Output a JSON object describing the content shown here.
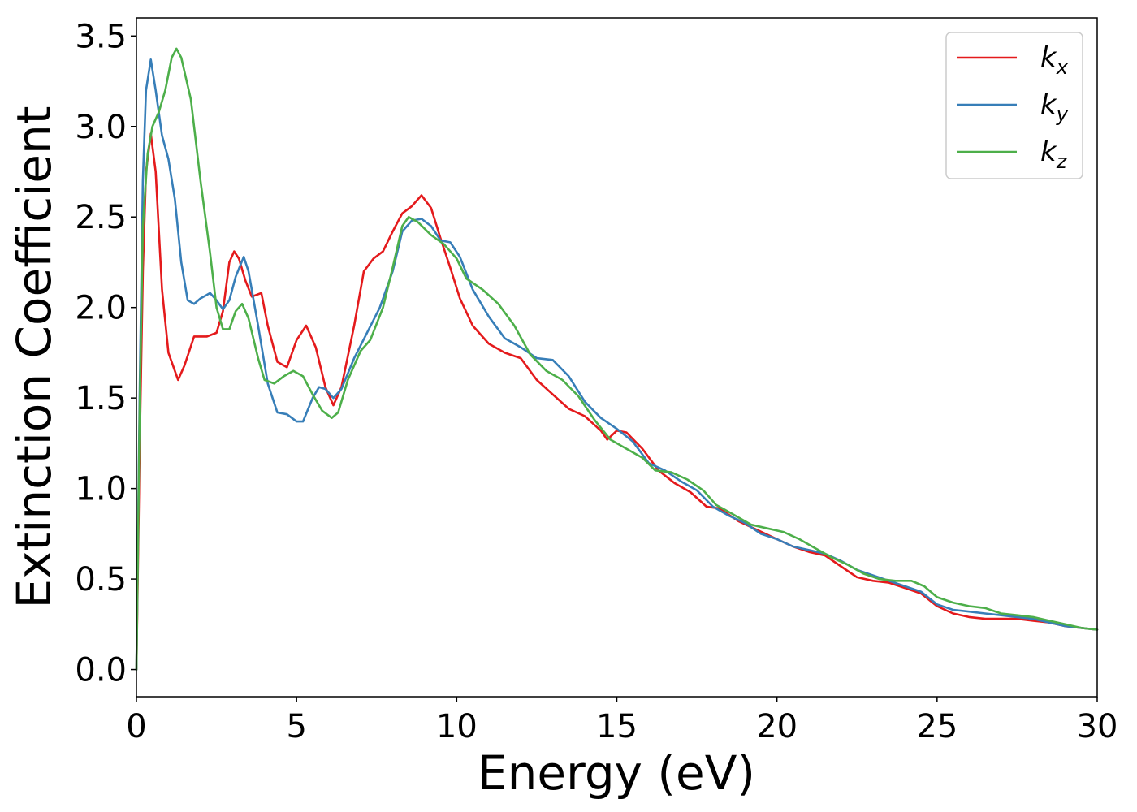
{
  "chart_data": {
    "type": "line",
    "title": "",
    "xlabel": "Energy (eV)",
    "ylabel": "Extinction Coefficient",
    "xlim": [
      0,
      30
    ],
    "ylim": [
      -0.15,
      3.6
    ],
    "xticks": [
      "0",
      "5",
      "10",
      "15",
      "20",
      "25",
      "30"
    ],
    "yticks": [
      "0.0",
      "0.5",
      "1.0",
      "1.5",
      "2.0",
      "2.5",
      "3.0",
      "3.5"
    ],
    "grid": false,
    "legend_position": "top-right",
    "series": [
      {
        "name": "k",
        "subscript": "x",
        "color": "#e41a1c",
        "points": [
          [
            0,
            0.0
          ],
          [
            0.1,
            1.2
          ],
          [
            0.2,
            2.2
          ],
          [
            0.3,
            2.75
          ],
          [
            0.45,
            2.96
          ],
          [
            0.6,
            2.75
          ],
          [
            0.8,
            2.1
          ],
          [
            1.0,
            1.75
          ],
          [
            1.3,
            1.6
          ],
          [
            1.5,
            1.68
          ],
          [
            1.8,
            1.84
          ],
          [
            2.2,
            1.84
          ],
          [
            2.5,
            1.86
          ],
          [
            2.7,
            1.98
          ],
          [
            2.9,
            2.25
          ],
          [
            3.05,
            2.31
          ],
          [
            3.2,
            2.27
          ],
          [
            3.4,
            2.15
          ],
          [
            3.6,
            2.06
          ],
          [
            3.9,
            2.08
          ],
          [
            4.1,
            1.9
          ],
          [
            4.4,
            1.7
          ],
          [
            4.7,
            1.67
          ],
          [
            5.0,
            1.82
          ],
          [
            5.3,
            1.9
          ],
          [
            5.6,
            1.78
          ],
          [
            5.9,
            1.56
          ],
          [
            6.15,
            1.46
          ],
          [
            6.4,
            1.56
          ],
          [
            6.8,
            1.9
          ],
          [
            7.1,
            2.2
          ],
          [
            7.4,
            2.27
          ],
          [
            7.7,
            2.31
          ],
          [
            8.0,
            2.42
          ],
          [
            8.3,
            2.52
          ],
          [
            8.6,
            2.56
          ],
          [
            8.9,
            2.62
          ],
          [
            9.2,
            2.55
          ],
          [
            9.5,
            2.38
          ],
          [
            9.8,
            2.22
          ],
          [
            10.1,
            2.05
          ],
          [
            10.5,
            1.9
          ],
          [
            11.0,
            1.8
          ],
          [
            11.5,
            1.75
          ],
          [
            12.0,
            1.72
          ],
          [
            12.5,
            1.6
          ],
          [
            13.0,
            1.52
          ],
          [
            13.5,
            1.44
          ],
          [
            14.0,
            1.4
          ],
          [
            14.5,
            1.32
          ],
          [
            14.7,
            1.27
          ],
          [
            15.0,
            1.32
          ],
          [
            15.3,
            1.31
          ],
          [
            15.8,
            1.22
          ],
          [
            16.3,
            1.1
          ],
          [
            16.8,
            1.03
          ],
          [
            17.3,
            0.98
          ],
          [
            17.8,
            0.9
          ],
          [
            18.2,
            0.89
          ],
          [
            18.8,
            0.82
          ],
          [
            19.4,
            0.77
          ],
          [
            20.0,
            0.72
          ],
          [
            20.5,
            0.68
          ],
          [
            21.0,
            0.65
          ],
          [
            21.5,
            0.63
          ],
          [
            22.0,
            0.57
          ],
          [
            22.5,
            0.51
          ],
          [
            23.0,
            0.49
          ],
          [
            23.5,
            0.48
          ],
          [
            24.0,
            0.45
          ],
          [
            24.5,
            0.42
          ],
          [
            25.0,
            0.35
          ],
          [
            25.5,
            0.31
          ],
          [
            26.0,
            0.29
          ],
          [
            26.5,
            0.28
          ],
          [
            27.0,
            0.28
          ],
          [
            27.5,
            0.28
          ],
          [
            28.0,
            0.27
          ],
          [
            28.5,
            0.26
          ],
          [
            29.0,
            0.24
          ],
          [
            29.5,
            0.23
          ],
          [
            30.0,
            0.22
          ]
        ]
      },
      {
        "name": "k",
        "subscript": "y",
        "color": "#377eb8",
        "points": [
          [
            0,
            0.0
          ],
          [
            0.1,
            1.5
          ],
          [
            0.2,
            2.7
          ],
          [
            0.3,
            3.2
          ],
          [
            0.45,
            3.37
          ],
          [
            0.6,
            3.2
          ],
          [
            0.8,
            2.95
          ],
          [
            1.0,
            2.82
          ],
          [
            1.2,
            2.6
          ],
          [
            1.4,
            2.25
          ],
          [
            1.6,
            2.04
          ],
          [
            1.8,
            2.02
          ],
          [
            2.0,
            2.05
          ],
          [
            2.3,
            2.08
          ],
          [
            2.5,
            2.04
          ],
          [
            2.7,
            1.99
          ],
          [
            2.9,
            2.04
          ],
          [
            3.1,
            2.17
          ],
          [
            3.35,
            2.28
          ],
          [
            3.5,
            2.2
          ],
          [
            3.8,
            1.9
          ],
          [
            4.1,
            1.58
          ],
          [
            4.4,
            1.42
          ],
          [
            4.7,
            1.41
          ],
          [
            5.0,
            1.37
          ],
          [
            5.2,
            1.37
          ],
          [
            5.5,
            1.5
          ],
          [
            5.7,
            1.56
          ],
          [
            5.9,
            1.55
          ],
          [
            6.15,
            1.5
          ],
          [
            6.4,
            1.55
          ],
          [
            6.8,
            1.72
          ],
          [
            7.2,
            1.86
          ],
          [
            7.6,
            2.0
          ],
          [
            8.0,
            2.2
          ],
          [
            8.3,
            2.42
          ],
          [
            8.6,
            2.48
          ],
          [
            8.9,
            2.49
          ],
          [
            9.2,
            2.45
          ],
          [
            9.5,
            2.37
          ],
          [
            9.8,
            2.36
          ],
          [
            10.1,
            2.28
          ],
          [
            10.5,
            2.1
          ],
          [
            11.0,
            1.95
          ],
          [
            11.5,
            1.83
          ],
          [
            12.0,
            1.78
          ],
          [
            12.5,
            1.72
          ],
          [
            13.0,
            1.71
          ],
          [
            13.5,
            1.62
          ],
          [
            14.0,
            1.48
          ],
          [
            14.5,
            1.39
          ],
          [
            15.0,
            1.33
          ],
          [
            15.5,
            1.26
          ],
          [
            16.0,
            1.14
          ],
          [
            16.5,
            1.1
          ],
          [
            17.0,
            1.04
          ],
          [
            17.5,
            0.99
          ],
          [
            18.0,
            0.9
          ],
          [
            18.5,
            0.85
          ],
          [
            19.0,
            0.81
          ],
          [
            19.5,
            0.75
          ],
          [
            20.0,
            0.72
          ],
          [
            20.5,
            0.68
          ],
          [
            21.0,
            0.66
          ],
          [
            21.5,
            0.64
          ],
          [
            22.0,
            0.6
          ],
          [
            22.5,
            0.55
          ],
          [
            23.0,
            0.52
          ],
          [
            23.5,
            0.49
          ],
          [
            24.0,
            0.46
          ],
          [
            24.5,
            0.43
          ],
          [
            25.0,
            0.36
          ],
          [
            25.5,
            0.33
          ],
          [
            26.0,
            0.32
          ],
          [
            26.5,
            0.31
          ],
          [
            27.0,
            0.3
          ],
          [
            27.5,
            0.29
          ],
          [
            28.0,
            0.28
          ],
          [
            28.5,
            0.26
          ],
          [
            29.0,
            0.24
          ],
          [
            29.5,
            0.23
          ],
          [
            30.0,
            0.22
          ]
        ]
      },
      {
        "name": "k",
        "subscript": "z",
        "color": "#4daf4a",
        "points": [
          [
            0,
            0.0
          ],
          [
            0.1,
            1.4
          ],
          [
            0.2,
            2.45
          ],
          [
            0.35,
            2.85
          ],
          [
            0.5,
            3.0
          ],
          [
            0.7,
            3.08
          ],
          [
            0.9,
            3.2
          ],
          [
            1.1,
            3.38
          ],
          [
            1.25,
            3.43
          ],
          [
            1.4,
            3.38
          ],
          [
            1.7,
            3.15
          ],
          [
            2.0,
            2.7
          ],
          [
            2.3,
            2.3
          ],
          [
            2.5,
            2.0
          ],
          [
            2.7,
            1.88
          ],
          [
            2.9,
            1.88
          ],
          [
            3.1,
            1.98
          ],
          [
            3.3,
            2.02
          ],
          [
            3.5,
            1.94
          ],
          [
            3.8,
            1.72
          ],
          [
            4.0,
            1.6
          ],
          [
            4.3,
            1.58
          ],
          [
            4.6,
            1.62
          ],
          [
            4.9,
            1.65
          ],
          [
            5.2,
            1.62
          ],
          [
            5.5,
            1.52
          ],
          [
            5.8,
            1.43
          ],
          [
            6.1,
            1.39
          ],
          [
            6.3,
            1.42
          ],
          [
            6.6,
            1.6
          ],
          [
            7.0,
            1.76
          ],
          [
            7.3,
            1.82
          ],
          [
            7.7,
            2.0
          ],
          [
            8.0,
            2.22
          ],
          [
            8.3,
            2.45
          ],
          [
            8.5,
            2.5
          ],
          [
            8.8,
            2.47
          ],
          [
            9.2,
            2.4
          ],
          [
            9.6,
            2.35
          ],
          [
            10.0,
            2.27
          ],
          [
            10.3,
            2.16
          ],
          [
            10.8,
            2.1
          ],
          [
            11.3,
            2.02
          ],
          [
            11.8,
            1.9
          ],
          [
            12.3,
            1.74
          ],
          [
            12.8,
            1.65
          ],
          [
            13.3,
            1.6
          ],
          [
            13.8,
            1.51
          ],
          [
            14.3,
            1.38
          ],
          [
            14.8,
            1.27
          ],
          [
            15.3,
            1.22
          ],
          [
            15.8,
            1.17
          ],
          [
            16.2,
            1.1
          ],
          [
            16.7,
            1.09
          ],
          [
            17.2,
            1.05
          ],
          [
            17.7,
            0.99
          ],
          [
            18.1,
            0.91
          ],
          [
            18.6,
            0.86
          ],
          [
            19.2,
            0.8
          ],
          [
            19.7,
            0.78
          ],
          [
            20.2,
            0.76
          ],
          [
            20.7,
            0.72
          ],
          [
            21.2,
            0.67
          ],
          [
            21.7,
            0.62
          ],
          [
            22.2,
            0.58
          ],
          [
            22.7,
            0.53
          ],
          [
            23.2,
            0.5
          ],
          [
            23.7,
            0.49
          ],
          [
            24.2,
            0.49
          ],
          [
            24.6,
            0.46
          ],
          [
            25.0,
            0.4
          ],
          [
            25.5,
            0.37
          ],
          [
            26.0,
            0.35
          ],
          [
            26.5,
            0.34
          ],
          [
            27.0,
            0.31
          ],
          [
            27.5,
            0.3
          ],
          [
            28.0,
            0.29
          ],
          [
            28.5,
            0.27
          ],
          [
            29.0,
            0.25
          ],
          [
            29.5,
            0.23
          ],
          [
            30.0,
            0.22
          ]
        ]
      }
    ]
  }
}
